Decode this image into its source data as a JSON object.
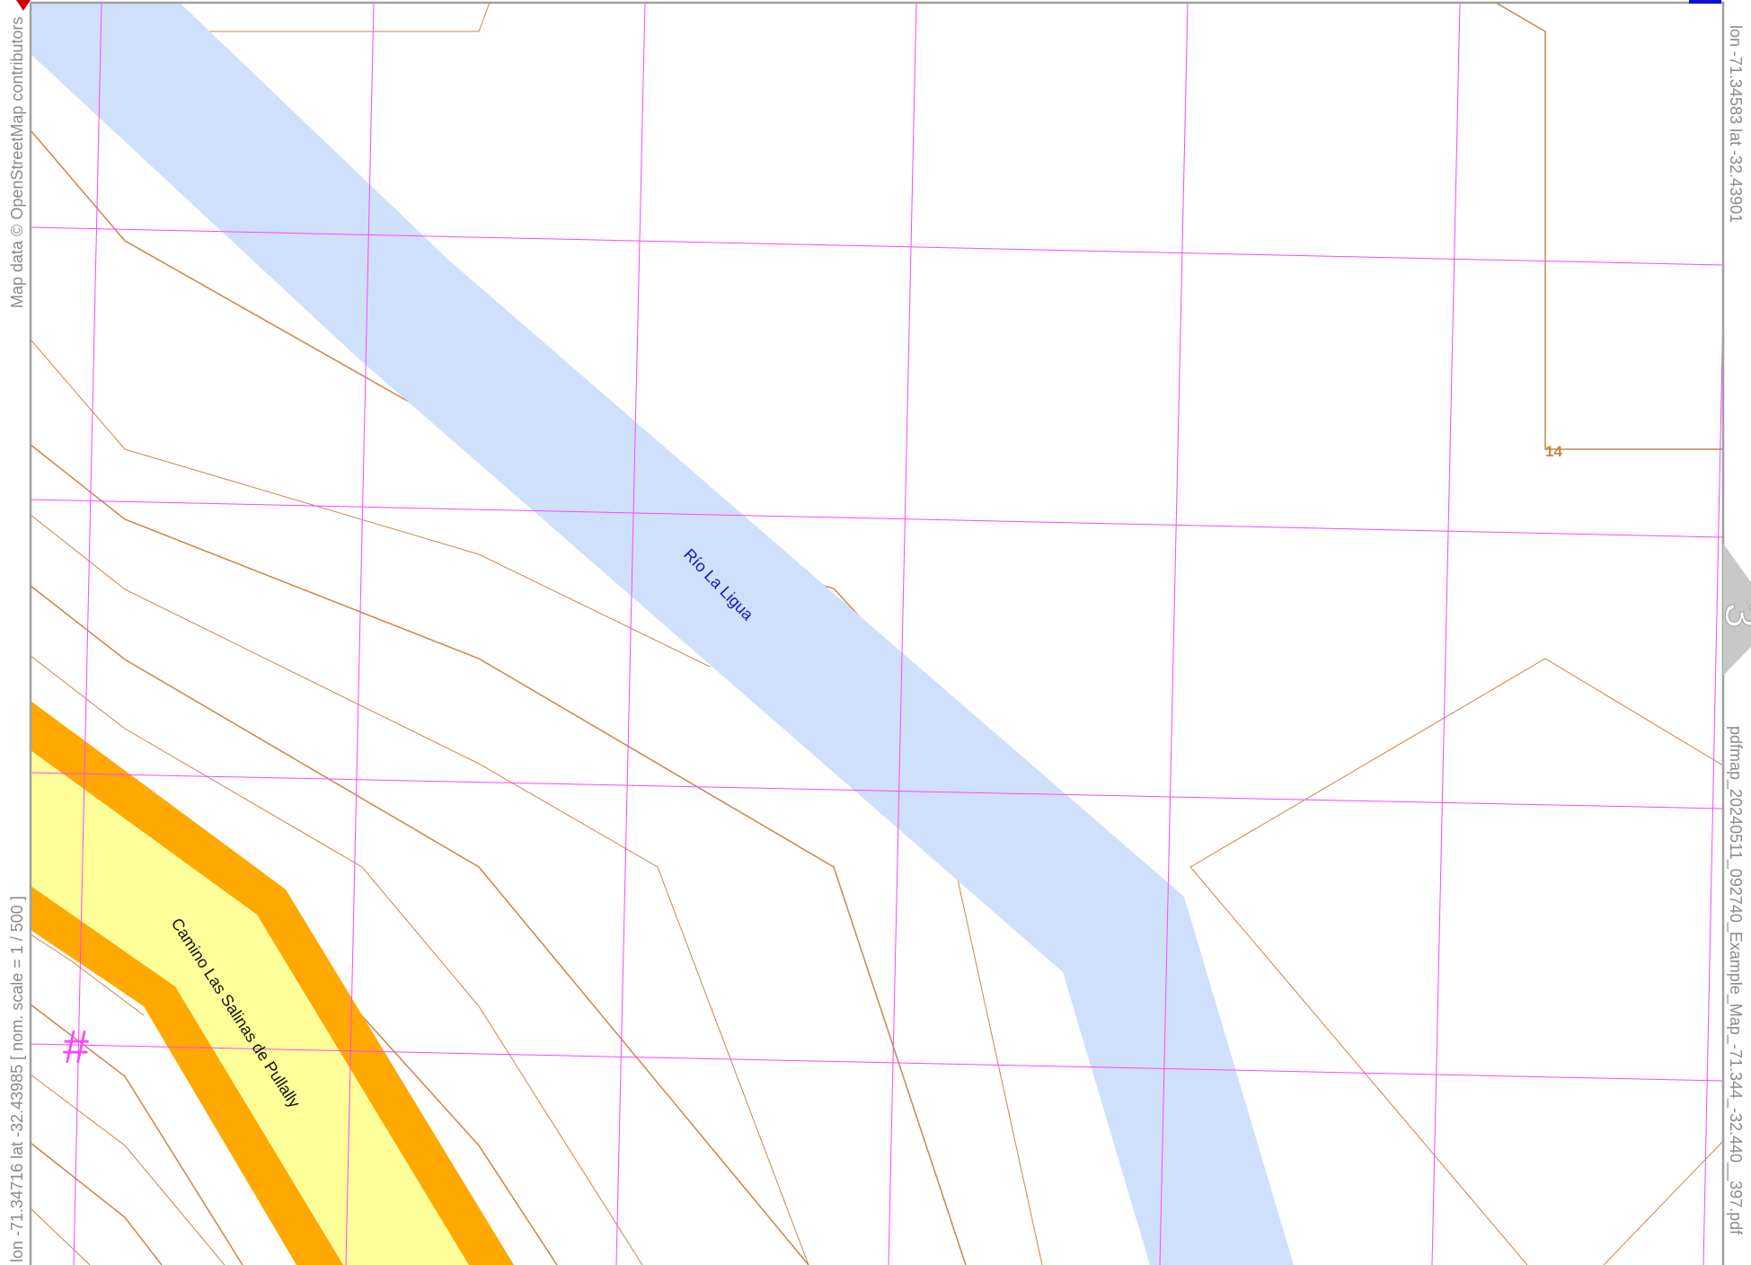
{
  "map": {
    "attribution": "Map data © OpenStreetMap contributors",
    "coord_top_right": "lon -71.34583 lat -32.43901",
    "coord_bottom_left": "lon -71.34716 lat -32.43985 [ nom. scale = 1 / 500 ]",
    "filename": "pdfmap_20240511_092740_Example_Map_-71.344_-32.440__397.pdf",
    "page_tab_number": "3",
    "river_label": "Río La Ligua",
    "road_label": "Camino Las Salinas de Pullally",
    "contour_label": "14",
    "grid_marker": "#"
  },
  "colors": {
    "river": "#cfe0fc",
    "road_casing": "#ffa800",
    "road_fill": "#ffff99",
    "contour": "#c8874a",
    "grid": "#ff44ff",
    "frame": "#a0a0a0",
    "river_label": "#1010d0"
  }
}
